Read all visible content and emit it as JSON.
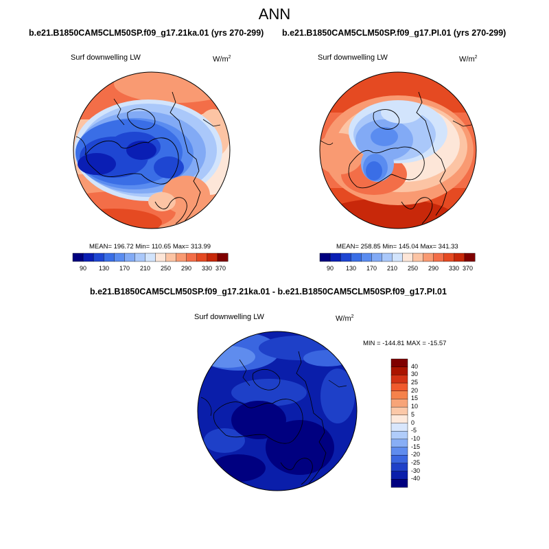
{
  "title": "ANN",
  "panels": [
    {
      "title": "b.e21.B1850CAM5CLM50SP.f09_g17.21ka.01 (yrs 270-299)",
      "variable": "Surf downwelling LW",
      "units_base": "W/m",
      "units_exp": "2",
      "stats": "MEAN= 196.72  Min= 110.65  Max= 313.99",
      "colorbar_ticks": [
        "90",
        "130",
        "170",
        "210",
        "250",
        "290",
        "330",
        "370"
      ]
    },
    {
      "title": "b.e21.B1850CAM5CLM50SP.f09_g17.PI.01 (yrs 270-299)",
      "variable": "Surf downwelling LW",
      "units_base": "W/m",
      "units_exp": "2",
      "stats": "MEAN= 258.85  Min= 145.04  Max= 341.33",
      "colorbar_ticks": [
        "90",
        "130",
        "170",
        "210",
        "250",
        "290",
        "330",
        "370"
      ]
    },
    {
      "title": "b.e21.B1850CAM5CLM50SP.f09_g17.21ka.01 - b.e21.B1850CAM5CLM50SP.f09_g17.PI.01",
      "variable": "Surf downwelling LW",
      "units_base": "W/m",
      "units_exp": "2",
      "stats": "MIN = -144.81  MAX = -15.57",
      "colorbar_ticks": [
        "40",
        "30",
        "25",
        "20",
        "15",
        "10",
        "5",
        "0",
        "-5",
        "-10",
        "-15",
        "-20",
        "-25",
        "-30",
        "-40"
      ]
    }
  ],
  "abs_palette": [
    "#00007f",
    "#0a1eb4",
    "#1e46d2",
    "#3a6ee6",
    "#5a8cf0",
    "#82aaf5",
    "#aac8fa",
    "#d2e4fc",
    "#fde6d8",
    "#fcc4a4",
    "#f99a72",
    "#f36e48",
    "#e54a22",
    "#c8280a",
    "#7f0000"
  ],
  "diff_palette": [
    "#7f0000",
    "#aa1400",
    "#d23214",
    "#f05a2d",
    "#f5824b",
    "#f7a478",
    "#fbc8a8",
    "#fde9dc",
    "#d8e6fc",
    "#b0ccfa",
    "#88aef5",
    "#5f8cee",
    "#3a66e0",
    "#1e40c8",
    "#0a1eaa",
    "#000080"
  ]
}
